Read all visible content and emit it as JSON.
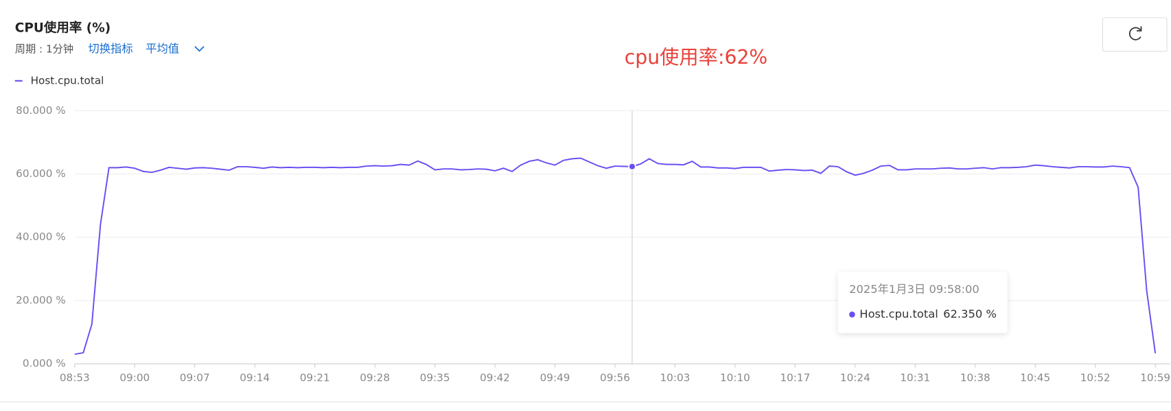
{
  "header": {
    "title": "CPU使用率 (%)",
    "period": "周期 : 1分钟",
    "switch_metric": "切换指标",
    "aggregation": "平均值"
  },
  "chart_data": {
    "type": "line",
    "annotation": "cpu使用率:62%",
    "x": [
      "08:53",
      "08:54",
      "08:55",
      "08:56",
      "08:57",
      "08:58",
      "08:59",
      "09:00",
      "09:01",
      "09:02",
      "09:03",
      "09:04",
      "09:05",
      "09:06",
      "09:07",
      "09:08",
      "09:09",
      "09:10",
      "09:11",
      "09:12",
      "09:13",
      "09:14",
      "09:15",
      "09:16",
      "09:17",
      "09:18",
      "09:19",
      "09:20",
      "09:21",
      "09:22",
      "09:23",
      "09:24",
      "09:25",
      "09:26",
      "09:27",
      "09:28",
      "09:29",
      "09:30",
      "09:31",
      "09:32",
      "09:33",
      "09:34",
      "09:35",
      "09:36",
      "09:37",
      "09:38",
      "09:39",
      "09:40",
      "09:41",
      "09:42",
      "09:43",
      "09:44",
      "09:45",
      "09:46",
      "09:47",
      "09:48",
      "09:49",
      "09:50",
      "09:51",
      "09:52",
      "09:53",
      "09:54",
      "09:55",
      "09:56",
      "09:57",
      "09:58",
      "09:59",
      "10:00",
      "10:01",
      "10:02",
      "10:03",
      "10:04",
      "10:05",
      "10:06",
      "10:07",
      "10:08",
      "10:09",
      "10:10",
      "10:11",
      "10:12",
      "10:13",
      "10:14",
      "10:15",
      "10:16",
      "10:17",
      "10:18",
      "10:19",
      "10:20",
      "10:21",
      "10:22",
      "10:23",
      "10:24",
      "10:25",
      "10:26",
      "10:27",
      "10:28",
      "10:29",
      "10:30",
      "10:31",
      "10:32",
      "10:33",
      "10:34",
      "10:35",
      "10:36",
      "10:37",
      "10:38",
      "10:39",
      "10:40",
      "10:41",
      "10:42",
      "10:43",
      "10:44",
      "10:45",
      "10:46",
      "10:47",
      "10:48",
      "10:49",
      "10:50",
      "10:51",
      "10:52",
      "10:53",
      "10:54",
      "10:55",
      "10:56",
      "10:57",
      "10:58",
      "10:59"
    ],
    "series": [
      {
        "name": "Host.cpu.total",
        "color": "#6a4ff2",
        "values": [
          3.0,
          3.5,
          12.5,
          44,
          62,
          62,
          62.2,
          61.8,
          60.8,
          60.5,
          61.2,
          62.1,
          61.8,
          61.5,
          61.9,
          62,
          61.8,
          61.5,
          61.2,
          62.3,
          62.3,
          62.1,
          61.8,
          62.2,
          62,
          62.1,
          62,
          62.1,
          62.1,
          62,
          62.1,
          62,
          62.1,
          62.1,
          62.5,
          62.6,
          62.5,
          62.6,
          63,
          62.8,
          64.1,
          63,
          61.3,
          61.6,
          61.6,
          61.3,
          61.4,
          61.6,
          61.5,
          61,
          61.8,
          60.8,
          62.8,
          64,
          64.5,
          63.5,
          62.8,
          64.3,
          64.8,
          65,
          63.8,
          62.6,
          61.8,
          62.5,
          62.4,
          62.35,
          63.2,
          64.8,
          63.3,
          63,
          63,
          62.9,
          64,
          62.2,
          62.2,
          61.9,
          61.9,
          61.7,
          62.1,
          62.1,
          62.1,
          60.9,
          61.2,
          61.4,
          61.3,
          61.1,
          61.2,
          60.2,
          62.5,
          62.3,
          60.7,
          59.6,
          60.2,
          61.2,
          62.5,
          62.7,
          61.3,
          61.3,
          61.6,
          61.6,
          61.6,
          61.8,
          61.9,
          61.6,
          61.6,
          61.8,
          62,
          61.6,
          62,
          62,
          62.1,
          62.3,
          62.8,
          62.6,
          62.3,
          62.1,
          61.9,
          62.3,
          62.3,
          62.2,
          62.2,
          62.5,
          62.3,
          62.0,
          55.8,
          23,
          3.3
        ]
      }
    ],
    "xticks": [
      "08:53",
      "09:00",
      "09:07",
      "09:14",
      "09:21",
      "09:28",
      "09:35",
      "09:42",
      "09:49",
      "09:56",
      "10:03",
      "10:10",
      "10:17",
      "10:24",
      "10:31",
      "10:38",
      "10:45",
      "10:52",
      "10:59"
    ],
    "ylim": [
      0,
      80
    ],
    "yticks": [
      {
        "value": 0,
        "label": "0.000 %"
      },
      {
        "value": 20,
        "label": "20.000 %"
      },
      {
        "value": 40,
        "label": "40.000 %"
      },
      {
        "value": 60,
        "label": "60.000 %"
      },
      {
        "value": 80,
        "label": "80.000 %"
      }
    ],
    "grid": true,
    "tooltip": {
      "title": "2025年1月3日 09:58:00",
      "value_label": "62.350 %"
    }
  }
}
